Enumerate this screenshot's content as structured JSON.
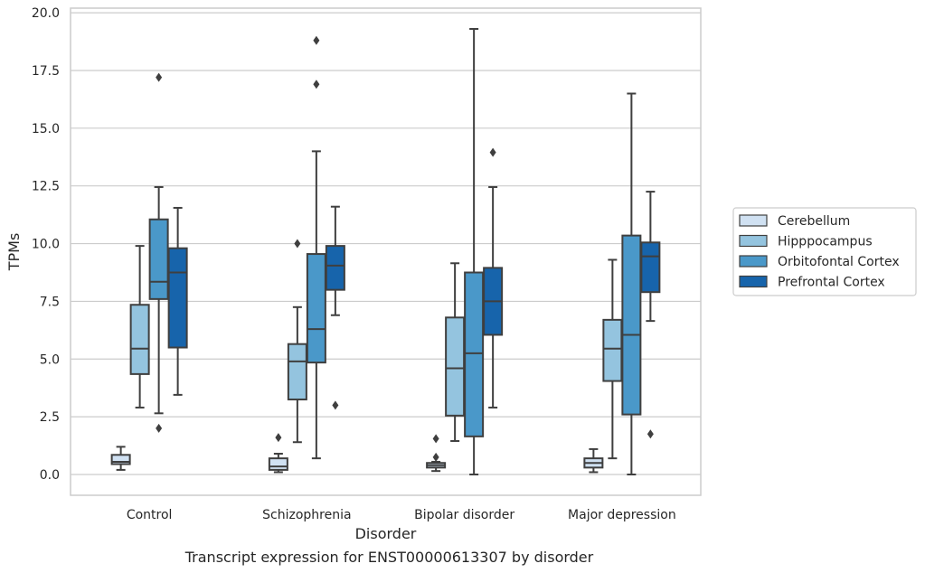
{
  "chart_data": {
    "type": "box",
    "title": "",
    "caption": "Transcript expression for ENST00000613307 by disorder",
    "xlabel": "Disorder",
    "ylabel": "TPMs",
    "ylim": [
      -0.9,
      20.2
    ],
    "yticks": [
      0.0,
      2.5,
      5.0,
      7.5,
      10.0,
      12.5,
      15.0,
      17.5,
      20.0
    ],
    "ytick_labels": [
      "0.0",
      "2.5",
      "5.0",
      "7.5",
      "10.0",
      "12.5",
      "15.0",
      "17.5",
      "20.0"
    ],
    "grid": "horizontal",
    "legend_position": "right",
    "categories": [
      "Control",
      "Schizophrenia",
      "Bipolar disorder",
      "Major depression"
    ],
    "series": [
      {
        "name": "Cerebellum",
        "color": "#d0e1f2",
        "boxes": [
          {
            "whisker_low": 0.2,
            "q1": 0.45,
            "median": 0.55,
            "q3": 0.85,
            "whisker_high": 1.2,
            "outliers": []
          },
          {
            "whisker_low": 0.1,
            "q1": 0.2,
            "median": 0.35,
            "q3": 0.7,
            "whisker_high": 0.9,
            "outliers": [
              1.6
            ]
          },
          {
            "whisker_low": 0.15,
            "q1": 0.3,
            "median": 0.4,
            "q3": 0.5,
            "whisker_high": 0.55,
            "outliers": [
              0.75,
              1.55
            ]
          },
          {
            "whisker_low": 0.1,
            "q1": 0.3,
            "median": 0.5,
            "q3": 0.7,
            "whisker_high": 1.1,
            "outliers": []
          }
        ]
      },
      {
        "name": "Hipppocampus",
        "color": "#94c4df",
        "boxes": [
          {
            "whisker_low": 2.9,
            "q1": 4.35,
            "median": 5.45,
            "q3": 7.35,
            "whisker_high": 9.9,
            "outliers": []
          },
          {
            "whisker_low": 1.4,
            "q1": 3.25,
            "median": 4.9,
            "q3": 5.65,
            "whisker_high": 7.25,
            "outliers": [
              10.0
            ]
          },
          {
            "whisker_low": 1.45,
            "q1": 2.55,
            "median": 4.6,
            "q3": 6.8,
            "whisker_high": 9.15,
            "outliers": []
          },
          {
            "whisker_low": 0.7,
            "q1": 4.05,
            "median": 5.45,
            "q3": 6.7,
            "whisker_high": 9.3,
            "outliers": []
          }
        ]
      },
      {
        "name": "Orbitofontal Cortex",
        "color": "#4a98c9",
        "boxes": [
          {
            "whisker_low": 2.65,
            "q1": 7.6,
            "median": 8.35,
            "q3": 11.05,
            "whisker_high": 12.45,
            "outliers": [
              2.0,
              17.2
            ]
          },
          {
            "whisker_low": 0.7,
            "q1": 4.85,
            "median": 6.3,
            "q3": 9.55,
            "whisker_high": 14.0,
            "outliers": [
              16.9,
              18.8
            ]
          },
          {
            "whisker_low": 0.0,
            "q1": 1.65,
            "median": 5.25,
            "q3": 8.75,
            "whisker_high": 19.3,
            "outliers": []
          },
          {
            "whisker_low": 0.0,
            "q1": 2.6,
            "median": 6.05,
            "q3": 10.35,
            "whisker_high": 16.5,
            "outliers": []
          }
        ]
      },
      {
        "name": "Prefrontal Cortex",
        "color": "#1764ab",
        "boxes": [
          {
            "whisker_low": 3.45,
            "q1": 5.5,
            "median": 8.75,
            "q3": 9.8,
            "whisker_high": 11.55,
            "outliers": []
          },
          {
            "whisker_low": 6.9,
            "q1": 8.0,
            "median": 9.05,
            "q3": 9.9,
            "whisker_high": 11.6,
            "outliers": [
              3.0
            ]
          },
          {
            "whisker_low": 2.9,
            "q1": 6.05,
            "median": 7.5,
            "q3": 8.95,
            "whisker_high": 12.45,
            "outliers": [
              13.95
            ]
          },
          {
            "whisker_low": 6.65,
            "q1": 7.9,
            "median": 9.45,
            "q3": 10.05,
            "whisker_high": 12.25,
            "outliers": [
              1.75
            ]
          }
        ]
      }
    ]
  }
}
